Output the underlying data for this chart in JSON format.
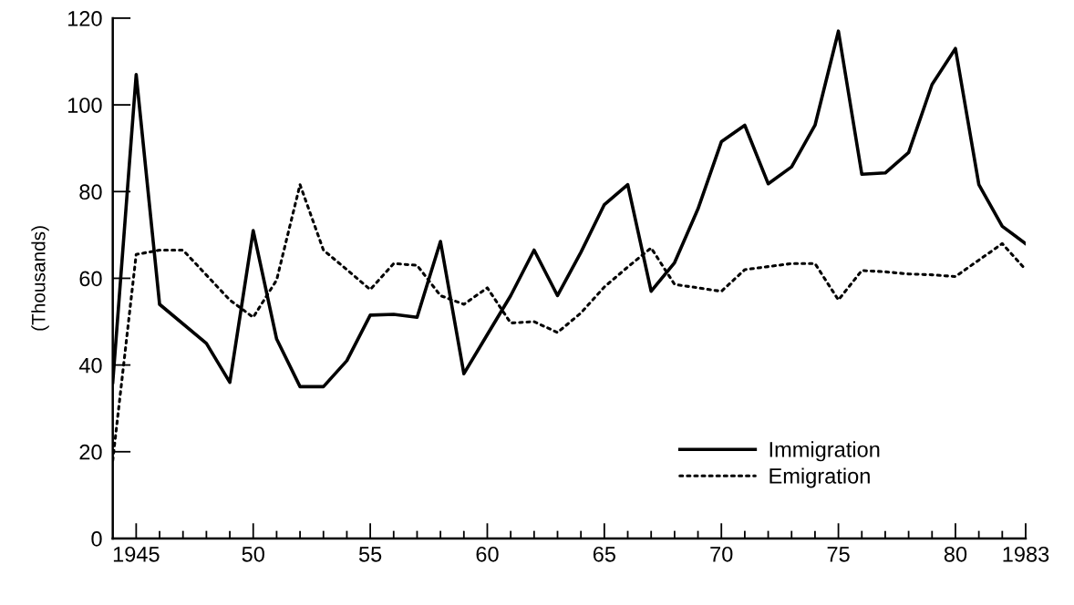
{
  "chart_data": {
    "type": "line",
    "ylabel": "(Thousands)",
    "xlim": [
      1944,
      1983
    ],
    "ylim": [
      0,
      120
    ],
    "xticks": [
      {
        "value": 1945,
        "label": "1945"
      },
      {
        "value": 1946,
        "label": null
      },
      {
        "value": 1947,
        "label": null
      },
      {
        "value": 1948,
        "label": null
      },
      {
        "value": 1949,
        "label": null
      },
      {
        "value": 1950,
        "label": "50"
      },
      {
        "value": 1951,
        "label": null
      },
      {
        "value": 1952,
        "label": null
      },
      {
        "value": 1953,
        "label": null
      },
      {
        "value": 1954,
        "label": null
      },
      {
        "value": 1955,
        "label": "55"
      },
      {
        "value": 1956,
        "label": null
      },
      {
        "value": 1957,
        "label": null
      },
      {
        "value": 1958,
        "label": null
      },
      {
        "value": 1959,
        "label": null
      },
      {
        "value": 1960,
        "label": "60"
      },
      {
        "value": 1961,
        "label": null
      },
      {
        "value": 1962,
        "label": null
      },
      {
        "value": 1963,
        "label": null
      },
      {
        "value": 1964,
        "label": null
      },
      {
        "value": 1965,
        "label": "65"
      },
      {
        "value": 1966,
        "label": null
      },
      {
        "value": 1967,
        "label": null
      },
      {
        "value": 1968,
        "label": null
      },
      {
        "value": 1969,
        "label": null
      },
      {
        "value": 1970,
        "label": "70"
      },
      {
        "value": 1971,
        "label": null
      },
      {
        "value": 1972,
        "label": null
      },
      {
        "value": 1973,
        "label": null
      },
      {
        "value": 1974,
        "label": null
      },
      {
        "value": 1975,
        "label": "75"
      },
      {
        "value": 1976,
        "label": null
      },
      {
        "value": 1977,
        "label": null
      },
      {
        "value": 1978,
        "label": null
      },
      {
        "value": 1979,
        "label": null
      },
      {
        "value": 1980,
        "label": "80"
      },
      {
        "value": 1981,
        "label": null
      },
      {
        "value": 1982,
        "label": null
      },
      {
        "value": 1983,
        "label": "1983"
      }
    ],
    "yticks": [
      0,
      20,
      40,
      60,
      80,
      100,
      120
    ],
    "grid": false,
    "legend": "bottom right",
    "marker": "none",
    "series": [
      {
        "name": "Immigration",
        "color": "#000000",
        "line_style": "solid",
        "x": [
          1944,
          1945,
          1946,
          1948,
          1949,
          1950,
          1951,
          1952,
          1953,
          1954,
          1955,
          1956,
          1957,
          1958,
          1959,
          1960,
          1961,
          1962,
          1963,
          1964,
          1965,
          1966,
          1967,
          1968,
          1969,
          1970,
          1971,
          1972,
          1973,
          1974,
          1975,
          1976,
          1977,
          1978,
          1979,
          1980,
          1981,
          1982,
          1983
        ],
        "values": [
          36,
          107,
          54,
          45,
          36,
          71,
          46,
          35,
          35,
          41,
          51.5,
          51.7,
          51,
          68.5,
          38,
          47,
          56,
          66.5,
          56,
          66,
          77,
          81.6,
          57,
          63.6,
          76,
          91.5,
          95.3,
          81.8,
          85.7,
          95.3,
          117,
          84,
          84.3,
          89,
          104.7,
          113,
          81.6,
          72,
          68
        ]
      },
      {
        "name": "Emigration",
        "color": "#000000",
        "line_style": "dotted",
        "x": [
          1944,
          1945,
          1946,
          1947,
          1949,
          1950,
          1951,
          1952,
          1953,
          1954,
          1955,
          1956,
          1957,
          1958,
          1959,
          1960,
          1961,
          1962,
          1963,
          1964,
          1965,
          1966,
          1967,
          1968,
          1970,
          1971,
          1973,
          1974,
          1975,
          1976,
          1977,
          1978,
          1979,
          1980,
          1982,
          1983
        ],
        "values": [
          18,
          65.5,
          66.5,
          66.5,
          55,
          51,
          59.6,
          81.6,
          66.5,
          62,
          57.4,
          63.4,
          63,
          56,
          54,
          57.8,
          49.7,
          50,
          47.5,
          52,
          58,
          62.6,
          67,
          58.6,
          57,
          62,
          63.4,
          63.4,
          55,
          61.8,
          61.5,
          61,
          60.8,
          60.4,
          68,
          62
        ]
      }
    ]
  }
}
